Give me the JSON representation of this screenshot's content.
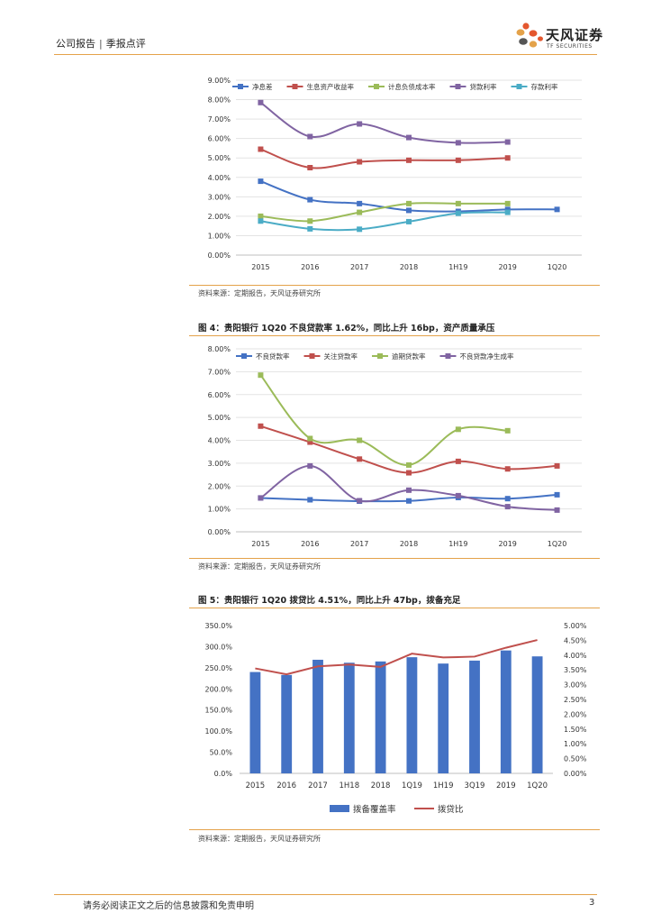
{
  "header": {
    "left_a": "公司报告",
    "separator": "|",
    "left_b": "季报点评",
    "logo_name": "天风证券",
    "logo_sub": "TF SECURITIES"
  },
  "footer": {
    "note": "请务必阅读正文之后的信息披露和免责申明",
    "page": "3"
  },
  "colors": {
    "blue": "#4472c4",
    "red": "#c0504d",
    "green": "#9bbb59",
    "purple": "#8064a2",
    "cyan": "#4bacc6",
    "bar": "#4472c4",
    "accent": "#e4a24a"
  },
  "charts": [
    {
      "source": "资料来源：定期报告，天风证券研究所",
      "chart_data": {
        "type": "line",
        "categories": [
          "2015",
          "2016",
          "2017",
          "2018",
          "1H19",
          "2019",
          "1Q20"
        ],
        "y_ticks": [
          "9.00%",
          "8.00%",
          "7.00%",
          "6.00%",
          "5.00%",
          "4.00%",
          "3.00%",
          "2.00%",
          "1.00%",
          "0.00%"
        ],
        "ylim": [
          0,
          9
        ],
        "series": [
          {
            "name": "净息差",
            "color": "blue",
            "values": [
              3.8,
              2.85,
              2.65,
              2.3,
              2.25,
              2.35,
              2.35
            ]
          },
          {
            "name": "生息资产收益率",
            "color": "red",
            "values": [
              5.45,
              4.5,
              4.8,
              4.88,
              4.88,
              5.0,
              null
            ]
          },
          {
            "name": "计息负债成本率",
            "color": "green",
            "values": [
              2.0,
              1.75,
              2.2,
              2.65,
              2.65,
              2.65,
              null
            ]
          },
          {
            "name": "贷款利率",
            "color": "purple",
            "values": [
              7.85,
              6.1,
              6.75,
              6.05,
              5.78,
              5.82,
              null
            ]
          },
          {
            "name": "存款利率",
            "color": "cyan",
            "values": [
              1.75,
              1.35,
              1.33,
              1.72,
              2.15,
              2.2,
              null
            ]
          }
        ]
      }
    },
    {
      "title": "图 4：贵阳银行 1Q20 不良贷款率 1.62%，同比上升 16bp，资产质量承压",
      "source": "资料来源：定期报告，天风证券研究所",
      "chart_data": {
        "type": "line",
        "categories": [
          "2015",
          "2016",
          "2017",
          "2018",
          "1H19",
          "2019",
          "1Q20"
        ],
        "y_ticks": [
          "8.00%",
          "7.00%",
          "6.00%",
          "5.00%",
          "4.00%",
          "3.00%",
          "2.00%",
          "1.00%",
          "0.00%"
        ],
        "ylim": [
          0,
          8
        ],
        "series": [
          {
            "name": "不良贷款率",
            "color": "blue",
            "values": [
              1.48,
              1.4,
              1.34,
              1.35,
              1.5,
              1.45,
              1.62
            ]
          },
          {
            "name": "关注贷款率",
            "color": "red",
            "values": [
              4.62,
              3.92,
              3.18,
              2.58,
              3.08,
              2.75,
              2.88
            ]
          },
          {
            "name": "逾期贷款率",
            "color": "green",
            "values": [
              6.85,
              4.08,
              4.0,
              2.92,
              4.48,
              4.42,
              null
            ]
          },
          {
            "name": "不良贷款净生成率",
            "color": "purple",
            "values": [
              1.48,
              2.88,
              1.36,
              1.82,
              1.58,
              1.1,
              0.95
            ]
          }
        ]
      }
    },
    {
      "title": "图 5：贵阳银行 1Q20 拨贷比 4.51%，同比上升 47bp，拨备充足",
      "source": "资料来源：定期报告，天风证券研究所",
      "chart_data": {
        "type": "bar",
        "categories": [
          "2015",
          "2016",
          "2017",
          "1H18",
          "2018",
          "1Q19",
          "1H19",
          "3Q19",
          "2019",
          "1Q20"
        ],
        "y_ticks_left": [
          "350.0%",
          "300.0%",
          "250.0%",
          "200.0%",
          "150.0%",
          "100.0%",
          "50.0%",
          "0.0%"
        ],
        "y_ticks_right": [
          "5.00%",
          "4.50%",
          "4.00%",
          "3.50%",
          "3.00%",
          "2.50%",
          "2.00%",
          "1.50%",
          "1.00%",
          "0.50%",
          "0.00%"
        ],
        "ylim_left": [
          0,
          350
        ],
        "ylim_right": [
          0,
          5
        ],
        "series": [
          {
            "name": "拨备覆盖率",
            "kind": "bar",
            "axis": "left",
            "values": [
              240,
              233,
              269,
              262,
              265,
              275,
              260,
              267,
              291,
              277
            ]
          },
          {
            "name": "拨贷比",
            "kind": "line",
            "axis": "right",
            "values": [
              3.55,
              3.35,
              3.62,
              3.68,
              3.6,
              4.05,
              3.92,
              3.95,
              4.25,
              4.51
            ]
          }
        ]
      }
    }
  ]
}
